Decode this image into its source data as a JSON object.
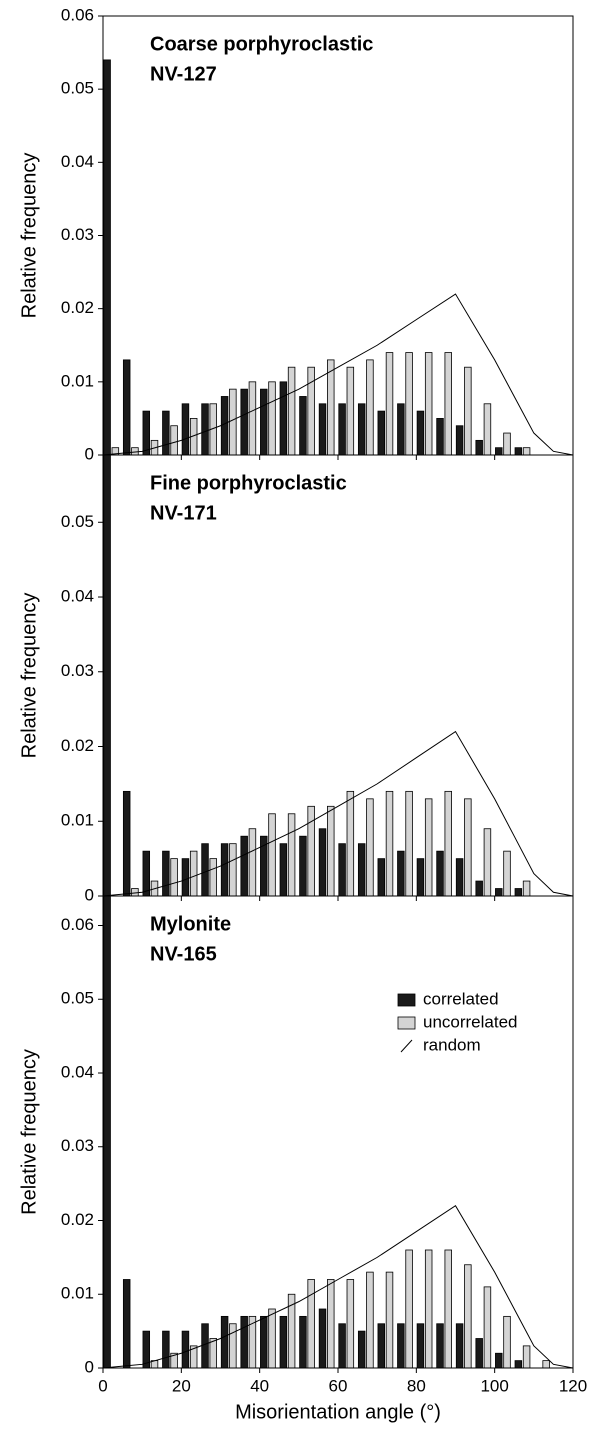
{
  "chart_data": [
    {
      "type": "bar",
      "annotations": [
        "Coarse porphyroclastic",
        "NV-127"
      ],
      "ylabel": "Relative frequency",
      "x": [
        2.5,
        7.5,
        12.5,
        17.5,
        22.5,
        27.5,
        32.5,
        37.5,
        42.5,
        47.5,
        52.5,
        57.5,
        62.5,
        67.5,
        72.5,
        77.5,
        82.5,
        87.5,
        92.5,
        97.5,
        102.5,
        107.5
      ],
      "series": [
        {
          "name": "correlated",
          "color": "#1a1a1a",
          "values": [
            0.054,
            0.013,
            0.006,
            0.006,
            0.007,
            0.007,
            0.008,
            0.009,
            0.009,
            0.01,
            0.008,
            0.007,
            0.007,
            0.007,
            0.006,
            0.007,
            0.006,
            0.005,
            0.004,
            0.002,
            0.001,
            0.001
          ]
        },
        {
          "name": "uncorrelated",
          "color": "#d4d4d4",
          "values": [
            0.001,
            0.001,
            0.002,
            0.004,
            0.005,
            0.007,
            0.009,
            0.01,
            0.01,
            0.012,
            0.012,
            0.013,
            0.012,
            0.013,
            0.014,
            0.014,
            0.014,
            0.014,
            0.012,
            0.007,
            0.003,
            0.001
          ]
        }
      ],
      "random": {
        "name": "random",
        "color": "#000000",
        "x": [
          0,
          10,
          20,
          30,
          40,
          50,
          60,
          70,
          80,
          90,
          100,
          105,
          110,
          115,
          120
        ],
        "values": [
          0,
          0.0005,
          0.002,
          0.004,
          0.0065,
          0.009,
          0.012,
          0.015,
          0.0185,
          0.022,
          0.013,
          0.008,
          0.003,
          0.0005,
          0
        ]
      },
      "xlim": [
        0,
        120
      ],
      "xticks": [
        0,
        20,
        40,
        60,
        80,
        100,
        120
      ],
      "ylim": [
        0,
        0.06
      ],
      "yticks": [
        0,
        0.01,
        0.02,
        0.03,
        0.04,
        0.05,
        0.06
      ],
      "legend": false
    },
    {
      "type": "bar",
      "annotations": [
        "Fine porphyroclastic",
        "NV-171"
      ],
      "ylabel": "Relative frequency",
      "x": [
        2.5,
        7.5,
        12.5,
        17.5,
        22.5,
        27.5,
        32.5,
        37.5,
        42.5,
        47.5,
        52.5,
        57.5,
        62.5,
        67.5,
        72.5,
        77.5,
        82.5,
        87.5,
        92.5,
        97.5,
        102.5,
        107.5
      ],
      "series": [
        {
          "name": "correlated",
          "color": "#1a1a1a",
          "values": [
            0.059,
            0.014,
            0.006,
            0.006,
            0.005,
            0.007,
            0.007,
            0.008,
            0.008,
            0.007,
            0.008,
            0.009,
            0.007,
            0.007,
            0.005,
            0.006,
            0.005,
            0.006,
            0.005,
            0.002,
            0.001,
            0.001
          ]
        },
        {
          "name": "uncorrelated",
          "color": "#d4d4d4",
          "values": [
            0,
            0.001,
            0.002,
            0.005,
            0.006,
            0.005,
            0.007,
            0.009,
            0.011,
            0.011,
            0.012,
            0.012,
            0.014,
            0.013,
            0.014,
            0.014,
            0.013,
            0.014,
            0.013,
            0.009,
            0.006,
            0.002
          ]
        }
      ],
      "random": {
        "name": "random",
        "color": "#000000",
        "x": [
          0,
          10,
          20,
          30,
          40,
          50,
          60,
          70,
          80,
          90,
          100,
          105,
          110,
          115,
          120
        ],
        "values": [
          0,
          0.0005,
          0.002,
          0.004,
          0.0065,
          0.009,
          0.012,
          0.015,
          0.0185,
          0.022,
          0.013,
          0.008,
          0.003,
          0.0005,
          0
        ]
      },
      "xlim": [
        0,
        120
      ],
      "xticks": [
        0,
        20,
        40,
        60,
        80,
        100,
        120
      ],
      "ylim": [
        0,
        0.059
      ],
      "yticks": [
        0,
        0.01,
        0.02,
        0.03,
        0.04,
        0.05
      ],
      "legend": false
    },
    {
      "type": "bar",
      "annotations": [
        "Mylonite",
        "NV-165"
      ],
      "ylabel": "Relative frequency",
      "xlabel": "Misorientation angle (°)",
      "x": [
        2.5,
        7.5,
        12.5,
        17.5,
        22.5,
        27.5,
        32.5,
        37.5,
        42.5,
        47.5,
        52.5,
        57.5,
        62.5,
        67.5,
        72.5,
        77.5,
        82.5,
        87.5,
        92.5,
        97.5,
        102.5,
        107.5,
        112.5
      ],
      "series": [
        {
          "name": "correlated",
          "color": "#1a1a1a",
          "values": [
            0.064,
            0.012,
            0.005,
            0.005,
            0.005,
            0.006,
            0.007,
            0.007,
            0.007,
            0.007,
            0.007,
            0.008,
            0.006,
            0.005,
            0.006,
            0.006,
            0.006,
            0.006,
            0.006,
            0.004,
            0.002,
            0.001,
            null
          ]
        },
        {
          "name": "uncorrelated",
          "color": "#d4d4d4",
          "values": [
            null,
            null,
            0.001,
            0.002,
            0.003,
            0.004,
            0.006,
            0.007,
            0.008,
            0.01,
            0.012,
            0.012,
            0.012,
            0.013,
            0.013,
            0.016,
            0.016,
            0.016,
            0.014,
            0.011,
            0.007,
            0.003,
            0.001
          ]
        }
      ],
      "random": {
        "name": "random",
        "color": "#000000",
        "x": [
          0,
          10,
          20,
          30,
          40,
          50,
          60,
          70,
          80,
          90,
          100,
          105,
          110,
          115,
          120
        ],
        "values": [
          0,
          0.0005,
          0.002,
          0.004,
          0.0065,
          0.009,
          0.012,
          0.015,
          0.0185,
          0.022,
          0.013,
          0.008,
          0.003,
          0.0005,
          0
        ]
      },
      "xlim": [
        0,
        120
      ],
      "xticks": [
        0,
        20,
        40,
        60,
        80,
        100,
        120
      ],
      "ylim": [
        0,
        0.064
      ],
      "yticks": [
        0,
        0.01,
        0.02,
        0.03,
        0.04,
        0.05,
        0.06
      ],
      "legend": true
    }
  ]
}
